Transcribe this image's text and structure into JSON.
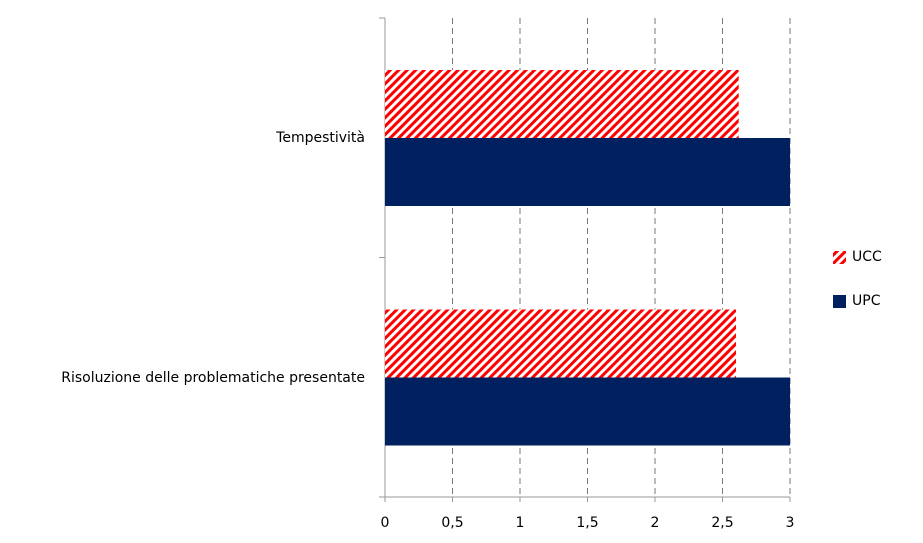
{
  "chart_data": {
    "type": "bar",
    "orientation": "horizontal",
    "categories": [
      "Tempestività",
      "Risoluzione delle problematiche presentate"
    ],
    "series": [
      {
        "name": "UCC",
        "color": "#ff0000",
        "pattern": "hatch",
        "values": [
          2.62,
          2.6
        ]
      },
      {
        "name": "UPC",
        "color": "#002060",
        "values": [
          3,
          3
        ]
      }
    ],
    "xlim": [
      0,
      3
    ],
    "xticks": [
      0,
      {
        "value": 0.5,
        "label": "0,5"
      },
      1,
      {
        "value": 1.5,
        "label": "1,5"
      },
      2,
      {
        "value": 2.5,
        "label": "2,5"
      },
      3
    ],
    "grid": true,
    "legend": "right"
  }
}
